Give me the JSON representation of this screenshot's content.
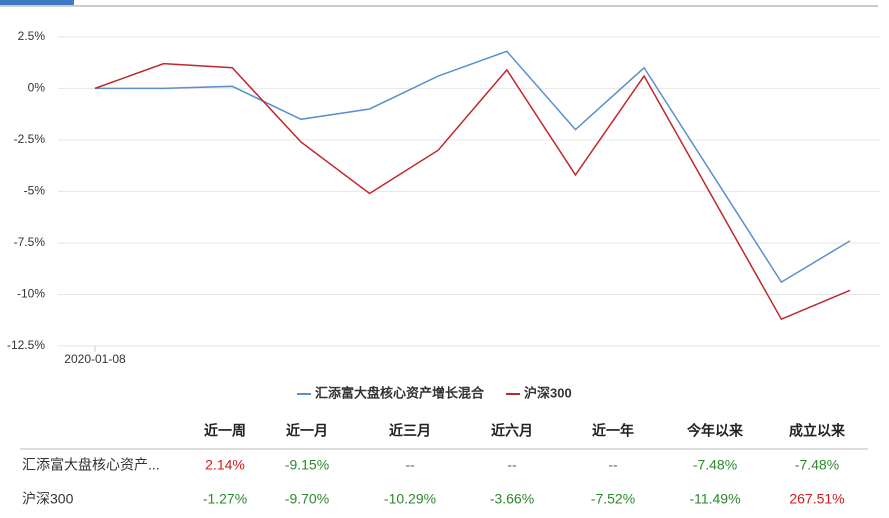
{
  "chart_data": {
    "type": "line",
    "categories": [
      "2020-01-08",
      null,
      null,
      null,
      null,
      null,
      null,
      null,
      null,
      null,
      null,
      null
    ],
    "series": [
      {
        "name": "汇添富大盘核心资产增长混合",
        "color": "#5b8fd0",
        "values": [
          0,
          0,
          0.1,
          -1.5,
          -1.0,
          0.6,
          1.8,
          -2.0,
          1.0,
          -4.2,
          -9.4,
          -7.4
        ]
      },
      {
        "name": "沪深300",
        "color": "#c0272d",
        "values": [
          0,
          1.2,
          1.0,
          -2.6,
          -5.1,
          -3.0,
          0.9,
          -4.2,
          0.6,
          -5.3,
          -11.2,
          -9.8
        ]
      }
    ],
    "ylim": [
      -12.5,
      3.9
    ],
    "yticks": [
      {
        "value": 2.5,
        "label": "2.5%"
      },
      {
        "value": 0,
        "label": "0%"
      },
      {
        "value": -2.5,
        "label": "-2.5%"
      },
      {
        "value": -5,
        "label": "-5%"
      },
      {
        "value": -7.5,
        "label": "-7.5%"
      },
      {
        "value": -10,
        "label": "-10%"
      },
      {
        "value": -12.5,
        "label": "-12.5%"
      }
    ],
    "grid": true
  },
  "table": {
    "headers": [
      "近一周",
      "近一月",
      "近三月",
      "近六月",
      "近一年",
      "今年以来",
      "成立以来"
    ],
    "rows": [
      [
        "汇添富大盘核心资产...",
        "2.14%",
        "-9.15%",
        "--",
        "--",
        "--",
        "-7.48%",
        "-7.48%"
      ],
      [
        "沪深300",
        "-1.27%",
        "-9.70%",
        "-10.29%",
        "-3.66%",
        "-7.52%",
        "-11.49%",
        "267.51%"
      ]
    ]
  }
}
